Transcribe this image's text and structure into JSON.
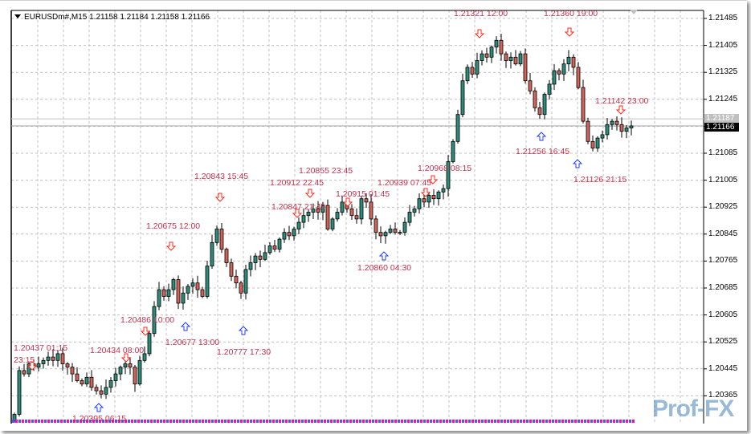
{
  "header": {
    "symbol_timeframe": "EURUSDm#,M15",
    "ohlc": "1.21158 1.21184 1.21158 1.21166"
  },
  "logo_text": "Prof-FX",
  "price_boxes": {
    "ask": "1.21187",
    "bid": "1.21166"
  },
  "colors": {
    "bull": "#2e8b7a",
    "bear": "#d0645a",
    "grid": "#c0c0c0",
    "label": "#c8304a",
    "up_arrow": "#1e3cff",
    "down_arrow": "#ff2a1a"
  },
  "annotations": [
    {
      "text": "1.20437 01:15"
    },
    {
      "text": "23:15"
    },
    {
      "text": "1.20395 06:15"
    },
    {
      "text": "1.20434 08:00"
    },
    {
      "text": "1.20486 10:00"
    },
    {
      "text": "1.20677 13:00"
    },
    {
      "text": "1.20675 12:00"
    },
    {
      "text": "1.20843 15:45"
    },
    {
      "text": "1.20777 17:30"
    },
    {
      "text": "1.20847 21:45"
    },
    {
      "text": "1.20912 22:45"
    },
    {
      "text": "1.20855 23:45"
    },
    {
      "text": "1.20915 01:45"
    },
    {
      "text": "1.20860 04:30"
    },
    {
      "text": "1.20968 08:15"
    },
    {
      "text": "1.20939 07:45"
    },
    {
      "text": "1.21321 12:00"
    },
    {
      "text": "1.21360 19:00"
    },
    {
      "text": "1.21256 16:45"
    },
    {
      "text": "1.21142 23:00"
    },
    {
      "text": "1.21126 21:15"
    }
  ],
  "chart_data": {
    "type": "candlestick",
    "symbol": "EURUSDm#",
    "timeframe": "M15",
    "grid": true,
    "y_ticks": [
      "1.21485",
      "1.21405",
      "1.21325",
      "1.21245",
      "1.21165",
      "1.21085",
      "1.21005",
      "1.20925",
      "1.20845",
      "1.20765",
      "1.20685",
      "1.20605",
      "1.20525",
      "1.20445",
      "1.20365"
    ],
    "ylim": [
      1.2029,
      1.2153
    ],
    "close": [
      1.2031,
      1.2044,
      1.2043,
      1.2046,
      1.2045,
      1.2046,
      1.2047,
      1.2048,
      1.2047,
      1.2049,
      1.2046,
      1.2045,
      1.2043,
      1.2041,
      1.204,
      1.2042,
      1.2039,
      1.2038,
      1.2037,
      1.2039,
      1.2041,
      1.2043,
      1.2045,
      1.2046,
      1.2045,
      1.204,
      1.2047,
      1.2049,
      1.2055,
      1.2063,
      1.2068,
      1.2066,
      1.2068,
      1.2071,
      1.2064,
      1.2067,
      1.2069,
      1.207,
      1.2068,
      1.2066,
      1.2075,
      1.2082,
      1.2086,
      1.208,
      1.2076,
      1.2072,
      1.207,
      1.2067,
      1.2074,
      1.2076,
      1.2078,
      1.2077,
      1.2079,
      1.2081,
      1.208,
      1.2083,
      1.2085,
      1.2084,
      1.2086,
      1.2088,
      1.209,
      1.2091,
      1.2092,
      1.2091,
      1.2093,
      1.2086,
      1.2089,
      1.2091,
      1.2094,
      1.2092,
      1.209,
      1.2089,
      1.2095,
      1.2094,
      1.2089,
      1.2085,
      1.2084,
      1.2085,
      1.2086,
      1.2085,
      1.2085,
      1.2088,
      1.2091,
      1.2092,
      1.2095,
      1.2094,
      1.2096,
      1.2095,
      1.2097,
      1.2098,
      1.2106,
      1.2112,
      1.212,
      1.213,
      1.2134,
      1.2132,
      1.2136,
      1.2138,
      1.2137,
      1.214,
      1.2142,
      1.2138,
      1.2136,
      1.2137,
      1.2135,
      1.2138,
      1.213,
      1.2127,
      1.2122,
      1.212,
      1.2126,
      1.2129,
      1.2133,
      1.2132,
      1.2135,
      1.2137,
      1.2134,
      1.2128,
      1.2118,
      1.2112,
      1.211,
      1.2113,
      1.2114,
      1.2117,
      1.2118,
      1.2117,
      1.2115,
      1.2116,
      1.21166
    ],
    "last_bid": 1.21166,
    "last_ask": 1.21187
  }
}
